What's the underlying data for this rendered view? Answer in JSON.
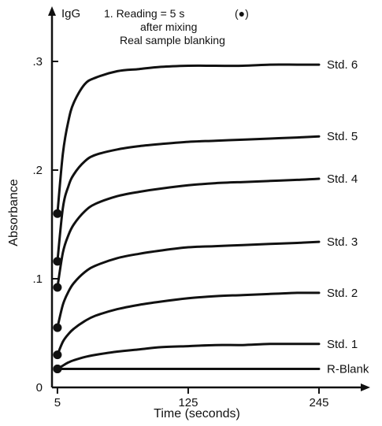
{
  "chart_data": {
    "type": "line",
    "title": "",
    "xlabel": "Time (seconds)",
    "ylabel": "Absorbance",
    "y_axis_top_label": "IgG",
    "annotation": {
      "line1": "1. Reading = 5 s",
      "marker_symbol": "(●)",
      "line2": "after mixing",
      "line3": "Real sample blanking"
    },
    "xlim": [
      0,
      265
    ],
    "ylim": [
      0,
      0.33
    ],
    "x_ticks": [
      5,
      125,
      245
    ],
    "x_tick_labels": [
      "5",
      "125",
      "245"
    ],
    "y_ticks": [
      0,
      0.1,
      0.2,
      0.3
    ],
    "y_tick_labels": [
      "0",
      ".1",
      ".2",
      ".3"
    ],
    "grid": false,
    "legend": "series labels at right end of each curve",
    "reading_time": 5,
    "series": [
      {
        "name": "Std. 6",
        "x": [
          5,
          10,
          15,
          20,
          30,
          40,
          60,
          80,
          100,
          125,
          150,
          175,
          200,
          225,
          245
        ],
        "y": [
          0.16,
          0.215,
          0.245,
          0.262,
          0.279,
          0.285,
          0.291,
          0.293,
          0.295,
          0.296,
          0.296,
          0.296,
          0.297,
          0.297,
          0.297
        ]
      },
      {
        "name": "Std. 5",
        "x": [
          5,
          10,
          15,
          20,
          30,
          40,
          60,
          80,
          100,
          125,
          150,
          175,
          200,
          225,
          245
        ],
        "y": [
          0.116,
          0.165,
          0.185,
          0.196,
          0.208,
          0.214,
          0.219,
          0.222,
          0.224,
          0.226,
          0.227,
          0.228,
          0.229,
          0.23,
          0.231
        ]
      },
      {
        "name": "Std. 4",
        "x": [
          5,
          10,
          15,
          20,
          30,
          40,
          60,
          80,
          100,
          125,
          150,
          175,
          200,
          225,
          245
        ],
        "y": [
          0.092,
          0.124,
          0.14,
          0.15,
          0.162,
          0.169,
          0.176,
          0.18,
          0.183,
          0.186,
          0.188,
          0.189,
          0.19,
          0.191,
          0.192
        ]
      },
      {
        "name": "Std. 3",
        "x": [
          5,
          10,
          15,
          20,
          30,
          40,
          60,
          80,
          100,
          125,
          150,
          175,
          200,
          225,
          245
        ],
        "y": [
          0.055,
          0.076,
          0.088,
          0.096,
          0.106,
          0.112,
          0.119,
          0.123,
          0.126,
          0.129,
          0.13,
          0.131,
          0.132,
          0.133,
          0.134
        ]
      },
      {
        "name": "Std. 2",
        "x": [
          5,
          10,
          15,
          20,
          30,
          40,
          60,
          80,
          100,
          125,
          150,
          175,
          200,
          225,
          245
        ],
        "y": [
          0.03,
          0.042,
          0.049,
          0.054,
          0.061,
          0.066,
          0.072,
          0.076,
          0.079,
          0.082,
          0.084,
          0.085,
          0.086,
          0.087,
          0.087
        ]
      },
      {
        "name": "Std. 1",
        "x": [
          5,
          10,
          15,
          20,
          30,
          40,
          60,
          80,
          100,
          125,
          150,
          175,
          200,
          225,
          245
        ],
        "y": [
          0.017,
          0.02,
          0.023,
          0.025,
          0.028,
          0.03,
          0.033,
          0.035,
          0.037,
          0.038,
          0.039,
          0.039,
          0.04,
          0.04,
          0.04
        ]
      },
      {
        "name": "R-Blank",
        "x": [
          5,
          245
        ],
        "y": [
          0.017,
          0.017
        ]
      }
    ]
  }
}
